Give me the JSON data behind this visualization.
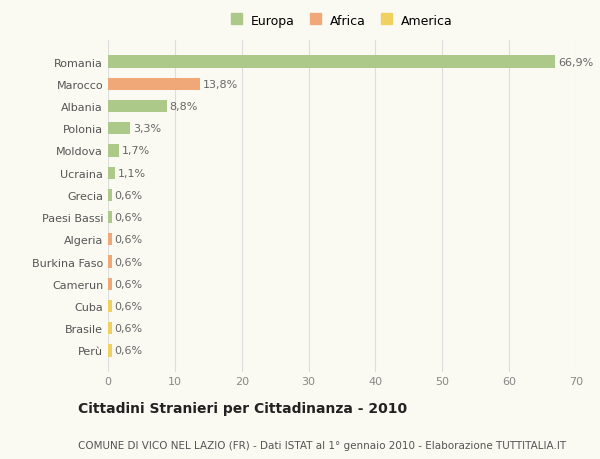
{
  "categories": [
    "Romania",
    "Marocco",
    "Albania",
    "Polonia",
    "Moldova",
    "Ucraina",
    "Grecia",
    "Paesi Bassi",
    "Algeria",
    "Burkina Faso",
    "Camerun",
    "Cuba",
    "Brasile",
    "Perù"
  ],
  "values": [
    66.9,
    13.8,
    8.8,
    3.3,
    1.7,
    1.1,
    0.6,
    0.6,
    0.6,
    0.6,
    0.6,
    0.6,
    0.6,
    0.6
  ],
  "labels": [
    "66,9%",
    "13,8%",
    "8,8%",
    "3,3%",
    "1,7%",
    "1,1%",
    "0,6%",
    "0,6%",
    "0,6%",
    "0,6%",
    "0,6%",
    "0,6%",
    "0,6%",
    "0,6%"
  ],
  "continents": [
    "Europa",
    "Africa",
    "Europa",
    "Europa",
    "Europa",
    "Europa",
    "Europa",
    "Europa",
    "Africa",
    "Africa",
    "Africa",
    "America",
    "America",
    "America"
  ],
  "colors": {
    "Europa": "#adc98a",
    "Africa": "#f0a878",
    "America": "#f0d060"
  },
  "legend_items": [
    "Europa",
    "Africa",
    "America"
  ],
  "legend_colors": [
    "#adc98a",
    "#f0a878",
    "#f0d060"
  ],
  "title": "Cittadini Stranieri per Cittadinanza - 2010",
  "subtitle": "COMUNE DI VICO NEL LAZIO (FR) - Dati ISTAT al 1° gennaio 2010 - Elaborazione TUTTITALIA.IT",
  "xlim": [
    0,
    70
  ],
  "xticks": [
    0,
    10,
    20,
    30,
    40,
    50,
    60,
    70
  ],
  "background_color": "#fafaf2",
  "grid_color": "#dddddd",
  "bar_height": 0.55,
  "title_fontsize": 10,
  "subtitle_fontsize": 7.5,
  "tick_fontsize": 8,
  "label_fontsize": 8,
  "legend_fontsize": 9
}
